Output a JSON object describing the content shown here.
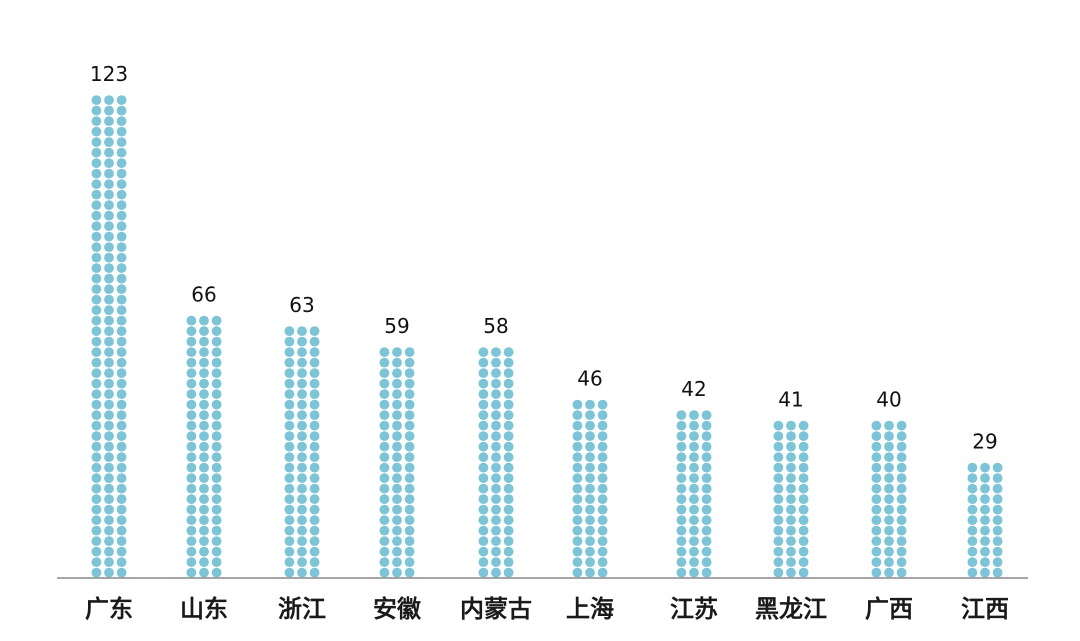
{
  "chart_data": {
    "type": "bar",
    "style": "dot-column",
    "categories": [
      "广东",
      "山东",
      "浙江",
      "安徽",
      "内蒙古",
      "上海",
      "江苏",
      "黑龙江",
      "广西",
      "江西"
    ],
    "values": [
      123,
      66,
      63,
      59,
      58,
      46,
      42,
      41,
      40,
      29
    ],
    "title": "",
    "xlabel": "",
    "ylabel": "",
    "ylim": [
      0,
      123
    ],
    "grid": false,
    "legend": "none"
  },
  "colors": {
    "dot": "#7cc4d6",
    "baseline": "#8a8a8a",
    "label": "#111111",
    "background": "#ffffff"
  }
}
